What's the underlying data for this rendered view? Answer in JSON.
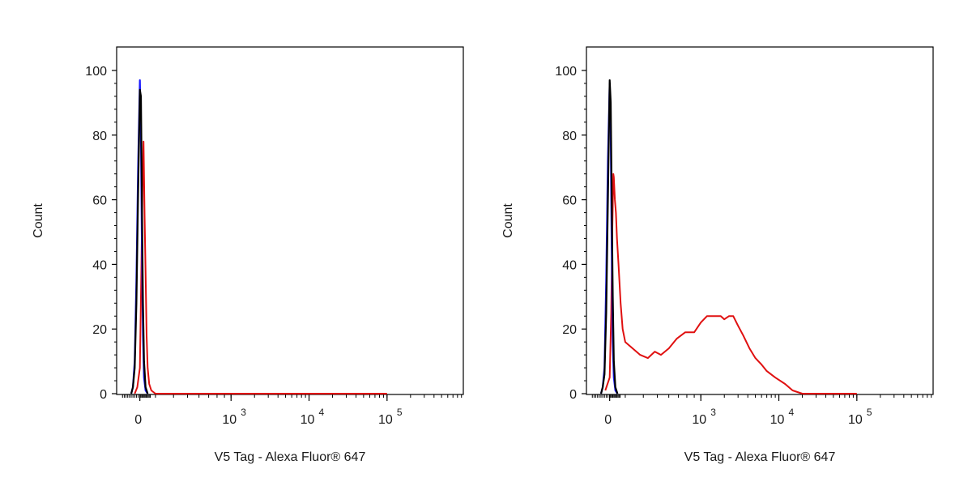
{
  "chart_data": [
    {
      "type": "line",
      "xlabel": "V5 Tag - Alexa Fluor® 647",
      "ylabel": "Count",
      "ylim": [
        0,
        100
      ],
      "y_ticks": [
        "0",
        "20",
        "40",
        "60",
        "80",
        "100"
      ],
      "x_ticks": [
        {
          "base": "0",
          "exp": ""
        },
        {
          "base": "10",
          "exp": "3"
        },
        {
          "base": "10",
          "exp": "4"
        },
        {
          "base": "10",
          "exp": "5"
        }
      ],
      "x_scale": "biexponential",
      "colors": {
        "blue": "#1a1aff",
        "black": "#000000",
        "red": "#e01010"
      },
      "series": [
        {
          "color": "blue",
          "points": [
            [
              -100,
              0
            ],
            [
              -80,
              2
            ],
            [
              -60,
              10
            ],
            [
              -40,
              35
            ],
            [
              -20,
              70
            ],
            [
              0,
              97
            ],
            [
              20,
              80
            ],
            [
              40,
              45
            ],
            [
              60,
              18
            ],
            [
              80,
              5
            ],
            [
              110,
              1
            ],
            [
              150,
              0
            ]
          ]
        },
        {
          "color": "black",
          "points": [
            [
              -100,
              0
            ],
            [
              -80,
              2
            ],
            [
              -60,
              8
            ],
            [
              -40,
              28
            ],
            [
              -20,
              62
            ],
            [
              0,
              94
            ],
            [
              20,
              92
            ],
            [
              40,
              60
            ],
            [
              60,
              28
            ],
            [
              80,
              10
            ],
            [
              110,
              2
            ],
            [
              150,
              0
            ]
          ]
        },
        {
          "color": "red",
          "points": [
            [
              -60,
              0
            ],
            [
              -30,
              2
            ],
            [
              0,
              8
            ],
            [
              30,
              40
            ],
            [
              50,
              64
            ],
            [
              70,
              78
            ],
            [
              90,
              55
            ],
            [
              110,
              38
            ],
            [
              130,
              18
            ],
            [
              150,
              8
            ],
            [
              180,
              3
            ],
            [
              220,
              1
            ],
            [
              300,
              0
            ],
            [
              100000,
              0
            ]
          ]
        }
      ]
    },
    {
      "type": "line",
      "xlabel": "V5 Tag - Alexa Fluor® 647",
      "ylabel": "Count",
      "ylim": [
        0,
        100
      ],
      "y_ticks": [
        "0",
        "20",
        "40",
        "60",
        "80",
        "100"
      ],
      "x_ticks": [
        {
          "base": "0",
          "exp": ""
        },
        {
          "base": "10",
          "exp": "3"
        },
        {
          "base": "10",
          "exp": "4"
        },
        {
          "base": "10",
          "exp": "5"
        }
      ],
      "x_scale": "biexponential",
      "colors": {
        "blue": "#1a1aff",
        "black": "#000000",
        "red": "#e01010"
      },
      "series": [
        {
          "color": "blue",
          "points": [
            [
              -100,
              0
            ],
            [
              -80,
              2
            ],
            [
              -60,
              8
            ],
            [
              -40,
              35
            ],
            [
              -20,
              72
            ],
            [
              0,
              96
            ],
            [
              20,
              80
            ],
            [
              40,
              45
            ],
            [
              60,
              16
            ],
            [
              80,
              5
            ],
            [
              110,
              1
            ],
            [
              150,
              0
            ]
          ]
        },
        {
          "color": "black",
          "points": [
            [
              -100,
              0
            ],
            [
              -80,
              2
            ],
            [
              -60,
              6
            ],
            [
              -40,
              25
            ],
            [
              -20,
              60
            ],
            [
              0,
              97
            ],
            [
              20,
              90
            ],
            [
              40,
              60
            ],
            [
              60,
              30
            ],
            [
              80,
              10
            ],
            [
              110,
              2
            ],
            [
              150,
              0
            ]
          ]
        },
        {
          "color": "red",
          "points": [
            [
              -50,
              1
            ],
            [
              0,
              5
            ],
            [
              30,
              25
            ],
            [
              50,
              50
            ],
            [
              70,
              68
            ],
            [
              80,
              67
            ],
            [
              100,
              60
            ],
            [
              120,
              56
            ],
            [
              140,
              48
            ],
            [
              170,
              40
            ],
            [
              210,
              28
            ],
            [
              250,
              20
            ],
            [
              300,
              16
            ],
            [
              380,
              12
            ],
            [
              430,
              11
            ],
            [
              480,
              13
            ],
            [
              530,
              12
            ],
            [
              600,
              14
            ],
            [
              680,
              17
            ],
            [
              780,
              19
            ],
            [
              900,
              19
            ],
            [
              1000,
              22
            ],
            [
              1200,
              24
            ],
            [
              1400,
              24
            ],
            [
              1600,
              24
            ],
            [
              1800,
              24
            ],
            [
              2000,
              23
            ],
            [
              2300,
              24
            ],
            [
              2600,
              24
            ],
            [
              3000,
              21
            ],
            [
              3500,
              18
            ],
            [
              4200,
              14
            ],
            [
              5000,
              11
            ],
            [
              6000,
              9
            ],
            [
              7000,
              7
            ],
            [
              9000,
              5
            ],
            [
              12000,
              3
            ],
            [
              15000,
              1
            ],
            [
              20000,
              0
            ],
            [
              100000,
              0
            ]
          ]
        }
      ]
    }
  ]
}
